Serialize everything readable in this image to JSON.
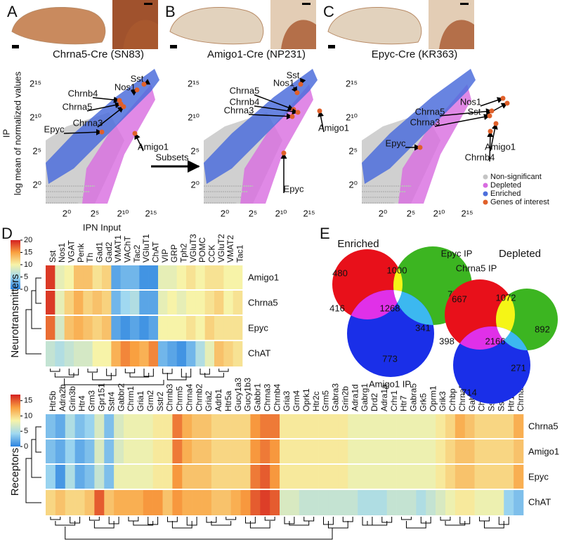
{
  "scatter_panels": [
    {
      "letter": "A",
      "title": "Chrna5-Cre (SN83)",
      "xticks": [
        "2⁰",
        "2⁵",
        "2¹⁰",
        "2¹⁵"
      ],
      "yticks": [
        "2¹⁵",
        "2¹⁰",
        "2⁵",
        "2⁰"
      ],
      "annotations": [
        "Chrnb4",
        "Sst",
        "Chrna5",
        "Nos1",
        "Chrna3",
        "Epyc",
        "Amigo1"
      ]
    },
    {
      "letter": "B",
      "title": "Amigo1-Cre (NP231)",
      "xticks": [
        "2⁰",
        "2⁵",
        "2¹⁰",
        "2¹⁵"
      ],
      "yticks": [
        "2¹⁵",
        "2¹⁰",
        "2⁵",
        "2⁰"
      ],
      "annotations": [
        "Sst",
        "Nos1",
        "Chrna5",
        "Chrnb4",
        "Chrna3",
        "Amigo1",
        "Epyc"
      ]
    },
    {
      "letter": "C",
      "title": "Epyc-Cre (KR363)",
      "xticks": [
        "2⁰",
        "2⁵",
        "2¹⁰",
        "2¹⁵"
      ],
      "yticks": [
        "2¹⁵",
        "2¹⁰",
        "2⁵",
        "2⁰"
      ],
      "annotations": [
        "Nos1",
        "Sst",
        "Chrna5",
        "Chrna3",
        "Epyc",
        "Amigo1",
        "Chrnb4"
      ]
    }
  ],
  "y_label": [
    "IP",
    "log mean of normalized values"
  ],
  "x_label": "IPN Input",
  "arrow_label": "Subsets",
  "legend": [
    "Non-significant",
    "Depleted",
    "Enriched",
    "Genes of interest"
  ],
  "heatmap_letter": "D",
  "heatmaps": [
    {
      "side_label": "Neurotransmitters",
      "clim": [
        0,
        20
      ],
      "colorbar_ticks": [
        0,
        5,
        10,
        15,
        20
      ],
      "columns": [
        "Sst",
        "Nos1",
        "VGAT",
        "Penk",
        "Th",
        "Gad1",
        "Gad2",
        "VMAT1",
        "VAChT",
        "Tac2",
        "VGluT1",
        "ChAT",
        "VIP",
        "GRP",
        "Tph2",
        "VGluT3",
        "POMC",
        "CCK",
        "VGluT2",
        "VMAT2",
        "Tac1"
      ],
      "rows": [
        "Amigo1",
        "Chrna5",
        "Epyc",
        "ChAT"
      ],
      "values": [
        [
          19,
          9,
          10,
          13,
          13,
          11,
          12,
          2,
          3,
          3,
          1,
          1,
          9,
          9,
          10,
          11,
          10,
          11,
          11,
          10,
          10
        ],
        [
          19,
          9,
          12,
          14,
          12,
          13,
          12,
          3,
          5,
          6,
          2,
          2,
          9,
          10,
          9,
          10,
          10,
          11,
          12,
          10,
          11
        ],
        [
          17,
          8,
          13,
          14,
          13,
          12,
          13,
          2,
          1,
          2,
          1,
          2,
          10,
          10,
          10,
          11,
          10,
          12,
          11,
          11,
          11
        ],
        [
          7,
          6,
          7,
          8,
          8,
          10,
          10,
          14,
          16,
          15,
          14,
          16,
          3,
          2,
          1,
          3,
          6,
          9,
          13,
          12,
          11
        ]
      ]
    },
    {
      "side_label": "Receptors",
      "clim": [
        0,
        17
      ],
      "colorbar_ticks": [
        0,
        5,
        10,
        15
      ],
      "columns": [
        "Htr5b",
        "Adra2b",
        "Grin3b",
        "Htr4",
        "Grm3",
        "Gpr151",
        "Sstr4",
        "Gabbr2",
        "Chrm1",
        "Gria1",
        "Grm2",
        "Sstr2",
        "Chrnb3",
        "Chrm5",
        "Chrna4",
        "Chrnb2",
        "Gria2",
        "Adrb1",
        "Htr5a",
        "Gucy1a3",
        "Gucy1b3",
        "Gabbr1",
        "Chrna3",
        "Chrnb4",
        "Gria3",
        "Grm4",
        "Oprk1",
        "Htr2c",
        "Grm5",
        "Gabra3",
        "Grin2b",
        "Adra1d",
        "Gabrg1",
        "Drd2",
        "Adra1a",
        "Crhr1",
        "Htr7",
        "Gabra5",
        "Grk5",
        "Oprm1",
        "Grik3",
        "Crhbp",
        "Chrna5",
        "Gabrq",
        "Chrna6",
        "Sstr1",
        "Sstr3",
        "Htr1a",
        "Chrna2"
      ],
      "rows": [
        "Chrna5",
        "Amigo1",
        "Epyc",
        "ChAT"
      ],
      "values": [
        [
          3,
          2,
          5,
          3,
          4,
          7,
          3,
          7,
          8,
          8,
          8,
          9,
          9,
          14,
          12,
          11,
          11,
          10,
          10,
          10,
          10,
          13,
          14,
          14,
          9,
          9,
          9,
          9,
          9,
          9,
          9,
          8,
          8,
          8,
          8,
          8,
          8,
          8,
          8,
          8,
          9,
          10,
          12,
          11,
          10,
          10,
          10,
          10,
          12
        ],
        [
          3,
          2,
          4,
          2,
          3,
          7,
          3,
          7,
          8,
          8,
          8,
          9,
          9,
          14,
          12,
          11,
          11,
          10,
          10,
          10,
          10,
          13,
          14,
          13,
          9,
          9,
          9,
          9,
          9,
          9,
          9,
          8,
          8,
          8,
          8,
          8,
          8,
          8,
          8,
          8,
          9,
          10,
          11,
          11,
          10,
          10,
          10,
          10,
          11
        ],
        [
          4,
          1,
          5,
          2,
          3,
          6,
          3,
          8,
          8,
          8,
          8,
          9,
          9,
          13,
          11,
          11,
          11,
          10,
          10,
          10,
          10,
          14,
          15,
          13,
          9,
          9,
          9,
          9,
          9,
          9,
          9,
          8,
          8,
          8,
          8,
          8,
          8,
          8,
          8,
          8,
          9,
          10,
          11,
          11,
          10,
          10,
          10,
          10,
          12
        ],
        [
          10,
          11,
          10,
          10,
          11,
          15,
          11,
          12,
          12,
          12,
          13,
          13,
          11,
          13,
          12,
          12,
          12,
          11,
          11,
          12,
          13,
          15,
          16,
          15,
          7,
          7,
          6,
          6,
          6,
          6,
          6,
          6,
          5,
          5,
          5,
          6,
          6,
          6,
          5,
          6,
          7,
          8,
          9,
          9,
          8,
          8,
          8,
          4,
          3
        ]
      ]
    }
  ],
  "venn_letter": "E",
  "venns": [
    {
      "title": "Enriched",
      "set_labels": [
        "Epyc IP",
        "Amigo1 IP"
      ],
      "counts": [
        "480",
        "1000",
        "772",
        "416",
        "1268",
        "341",
        "773"
      ]
    },
    {
      "title": "Depleted",
      "set_labels": [
        "Chrna5 IP"
      ],
      "counts": [
        "667",
        "1072",
        "892",
        "398",
        "2166",
        "271",
        "714"
      ]
    }
  ]
}
